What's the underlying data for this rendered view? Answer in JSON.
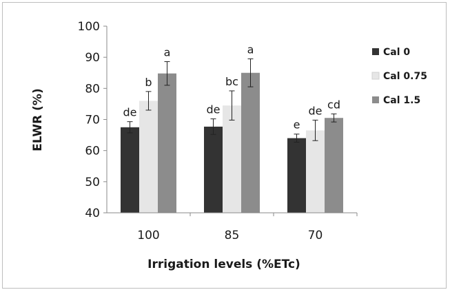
{
  "chart_data": {
    "type": "bar",
    "title": "",
    "xlabel": "Irrigation levels (%ETc)",
    "ylabel": "ELWR (%)",
    "ylim": [
      40,
      100
    ],
    "yticks": [
      40,
      50,
      60,
      70,
      80,
      90,
      100
    ],
    "categories": [
      "100",
      "85",
      "70"
    ],
    "grid": false,
    "legend_position": "right",
    "series": [
      {
        "name": "Cal 0",
        "color": "#333333",
        "values": [
          67.5,
          67.7,
          64.0
        ],
        "errors": [
          1.8,
          2.5,
          1.3
        ],
        "labels": [
          "de",
          "de",
          "e"
        ]
      },
      {
        "name": "Cal 0.75",
        "color": "#e6e6e6",
        "values": [
          76.0,
          74.5,
          66.5
        ],
        "errors": [
          3.0,
          4.7,
          3.3
        ],
        "labels": [
          "b",
          "bc",
          "de"
        ]
      },
      {
        "name": "Cal 1.5",
        "color": "#8c8c8c",
        "values": [
          84.8,
          85.0,
          70.5
        ],
        "errors": [
          3.8,
          4.5,
          1.3
        ],
        "labels": [
          "a",
          "a",
          "cd"
        ]
      }
    ]
  }
}
